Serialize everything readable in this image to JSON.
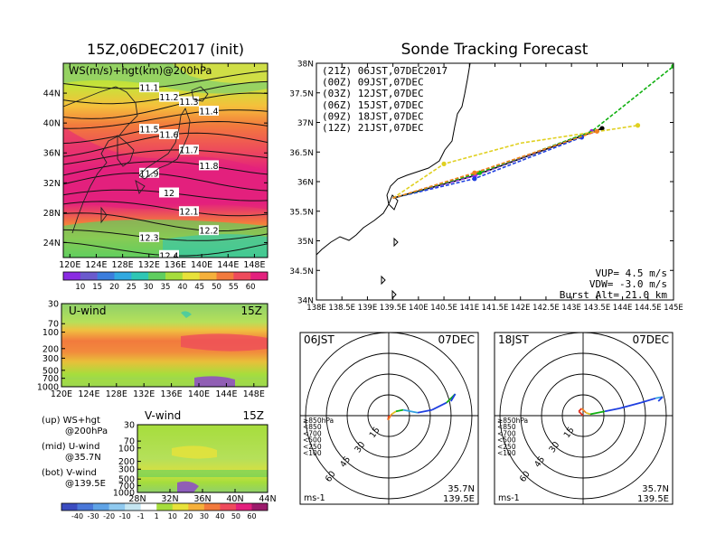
{
  "left_title": "15Z,06DEC2017 (init)",
  "main_map": {
    "label": "WS(m/s)+hgt(km)@200hPa",
    "lat_ticks": [
      "44N",
      "40N",
      "36N",
      "32N",
      "28N",
      "24N"
    ],
    "lon_ticks": [
      "120E",
      "124E",
      "128E",
      "132E",
      "136E",
      "140E",
      "144E",
      "148E"
    ],
    "contour_labels": [
      "11.1",
      "11.2",
      "11.3",
      "11.4",
      "11.5",
      "11.6",
      "11.7",
      "11.8",
      "11.9",
      "12",
      "12.1",
      "12.2",
      "12.3",
      "12.4"
    ],
    "colorbar_ticks": [
      "10",
      "15",
      "20",
      "25",
      "30",
      "35",
      "40",
      "45",
      "50",
      "55",
      "60"
    ],
    "colorbar_colors": [
      "#8a2be2",
      "#6a5acd",
      "#3b7ddd",
      "#31a9e0",
      "#2ec7b5",
      "#5fce5f",
      "#a6dd3c",
      "#e8e23a",
      "#f5b03b",
      "#f27a3d",
      "#ee4a5c",
      "#e3207d"
    ]
  },
  "u_panel": {
    "label": "U-wind",
    "time": "15Z",
    "p_ticks": [
      "30",
      "70",
      "100",
      "200",
      "300",
      "500",
      "700",
      "1000"
    ],
    "lon_ticks": [
      "120E",
      "124E",
      "128E",
      "132E",
      "136E",
      "140E",
      "144E",
      "148E"
    ]
  },
  "v_panel": {
    "label": "V-wind",
    "time": "15Z",
    "p_ticks": [
      "30",
      "70",
      "100",
      "200",
      "300",
      "500",
      "700",
      "1000"
    ],
    "lat_ticks": [
      "28N",
      "32N",
      "36N",
      "40N",
      "44N"
    ],
    "colorbar_ticks": [
      "-40",
      "-30",
      "-20",
      "-10",
      "-1",
      "1",
      "10",
      "20",
      "30",
      "40",
      "50",
      "60"
    ],
    "colorbar_colors": [
      "#3b4cc0",
      "#4a78d9",
      "#5fa3e6",
      "#8fc9ef",
      "#c5e6f2",
      "#ffffff",
      "#a6dd3c",
      "#e8e23a",
      "#f5b03b",
      "#f27a3d",
      "#ee4a5c",
      "#e3207d",
      "#9b1b6b"
    ]
  },
  "legend_notes": [
    {
      "line1": "(up) WS+hgt",
      "line2": "@200hPa"
    },
    {
      "line1": "(mid) U-wind",
      "line2": "@35.7N"
    },
    {
      "line1": "(bot) V-wind",
      "line2": "@139.5E"
    }
  ],
  "track_title": "Sonde Tracking Forecast",
  "track_map": {
    "lat_ticks": [
      "38N",
      "37.5N",
      "37N",
      "36.5N",
      "36N",
      "35.5N",
      "35N",
      "34.5N",
      "34N"
    ],
    "lon_ticks": [
      "138E",
      "138.5E",
      "139E",
      "139.5E",
      "140E",
      "140.5E",
      "141E",
      "141.5E",
      "142E",
      "142.5E",
      "143E",
      "143.5E",
      "144E",
      "144.5E",
      "145E"
    ],
    "runs": [
      {
        "label": "(21Z) 06JST,07DEC2017",
        "color": "#000000"
      },
      {
        "label": "(00Z) 09JST,07DEC",
        "color": "#a020f0"
      },
      {
        "label": "(03Z) 12JST,07DEC",
        "color": "#1f3fe0"
      },
      {
        "label": "(06Z) 15JST,07DEC",
        "color": "#10b010"
      },
      {
        "label": "(09Z) 18JST,07DEC",
        "color": "#e0d020"
      },
      {
        "label": "(12Z) 21JST,07DEC",
        "color": "#f08020"
      }
    ],
    "vup": "VUP= 4.5 m/s",
    "vdw": "VDW= -3.0 m/s",
    "burst": "Burst Alt= 21.0 km"
  },
  "hodo_left": {
    "time": "06JST",
    "date": "07DEC",
    "rings": [
      "15",
      "30",
      "45",
      "60"
    ],
    "levels": [
      {
        "label": "≥850hPa",
        "color": "#e03020"
      },
      {
        "label": "<850",
        "color": "#f08020"
      },
      {
        "label": "<700",
        "color": "#e0c020"
      },
      {
        "label": "<500",
        "color": "#10b010"
      },
      {
        "label": "<250",
        "color": "#30a0e0"
      },
      {
        "label": "<100",
        "color": "#1f3fe0"
      }
    ],
    "unit": "ms-1",
    "lat": "35.7N",
    "lon": "139.5E"
  },
  "hodo_right": {
    "time": "18JST",
    "date": "07DEC",
    "rings": [
      "15",
      "30",
      "45",
      "60"
    ],
    "levels": [
      {
        "label": "≥850hPa",
        "color": "#e03020"
      },
      {
        "label": "<850",
        "color": "#f08020"
      },
      {
        "label": "<700",
        "color": "#e0c020"
      },
      {
        "label": "<500",
        "color": "#10b010"
      },
      {
        "label": "<250",
        "color": "#30a0e0"
      },
      {
        "label": "<100",
        "color": "#1f3fe0"
      }
    ],
    "unit": "ms-1",
    "lat": "35.7N",
    "lon": "139.5E"
  },
  "chart_data": [
    {
      "type": "heatmap",
      "title": "15Z,06DEC2017 (init)",
      "subtitle": "WS(m/s)+hgt(km)@200hPa",
      "xlim": [
        120,
        150
      ],
      "ylim": [
        22,
        48
      ],
      "x_ticks": [
        "120E",
        "124E",
        "128E",
        "132E",
        "136E",
        "140E",
        "144E",
        "148E"
      ],
      "y_ticks": [
        "24N",
        "28N",
        "32N",
        "36N",
        "40N",
        "44N"
      ],
      "colorbar": [
        10,
        15,
        20,
        25,
        30,
        35,
        40,
        45,
        50,
        55,
        60
      ],
      "contour_levels_km": [
        11.1,
        11.2,
        11.3,
        11.4,
        11.5,
        11.6,
        11.7,
        11.8,
        11.9,
        12.0,
        12.1,
        12.2,
        12.3,
        12.4
      ]
    },
    {
      "type": "heatmap",
      "title": "U-wind",
      "xlim": [
        120,
        150
      ],
      "y_ticks_hPa": [
        30,
        70,
        100,
        200,
        300,
        500,
        700,
        1000
      ]
    },
    {
      "type": "heatmap",
      "title": "V-wind",
      "xlim": [
        28,
        44
      ],
      "y_ticks_hPa": [
        30,
        70,
        100,
        200,
        300,
        500,
        700,
        1000
      ],
      "colorbar": [
        -40,
        -30,
        -20,
        -10,
        -1,
        1,
        10,
        20,
        30,
        40,
        50,
        60
      ]
    },
    {
      "type": "line",
      "title": "Sonde Tracking Forecast",
      "xlim": [
        138,
        145
      ],
      "ylim": [
        34,
        38
      ],
      "series": [
        {
          "name": "(21Z) 06JST,07DEC2017",
          "x": [
            139.5,
            141.1,
            143.6
          ],
          "y": [
            35.72,
            36.1,
            36.9
          ]
        },
        {
          "name": "(00Z) 09JST,07DEC",
          "x": [
            139.5,
            141.1,
            143.4
          ],
          "y": [
            35.72,
            36.1,
            36.85
          ]
        },
        {
          "name": "(03Z) 12JST,07DEC",
          "x": [
            139.5,
            141.1,
            143.2
          ],
          "y": [
            35.72,
            36.05,
            36.75
          ]
        },
        {
          "name": "(06Z) 15JST,07DEC",
          "x": [
            139.5,
            141.2,
            143.4,
            145.0
          ],
          "y": [
            35.72,
            36.15,
            36.85,
            37.95
          ]
        },
        {
          "name": "(09Z) 18JST,07DEC",
          "x": [
            139.5,
            140.5,
            142.0,
            144.3
          ],
          "y": [
            35.72,
            36.3,
            36.65,
            36.95
          ]
        },
        {
          "name": "(12Z) 21JST,07DEC",
          "x": [
            139.5,
            141.1,
            143.5
          ],
          "y": [
            35.72,
            36.15,
            36.85
          ]
        }
      ]
    }
  ]
}
